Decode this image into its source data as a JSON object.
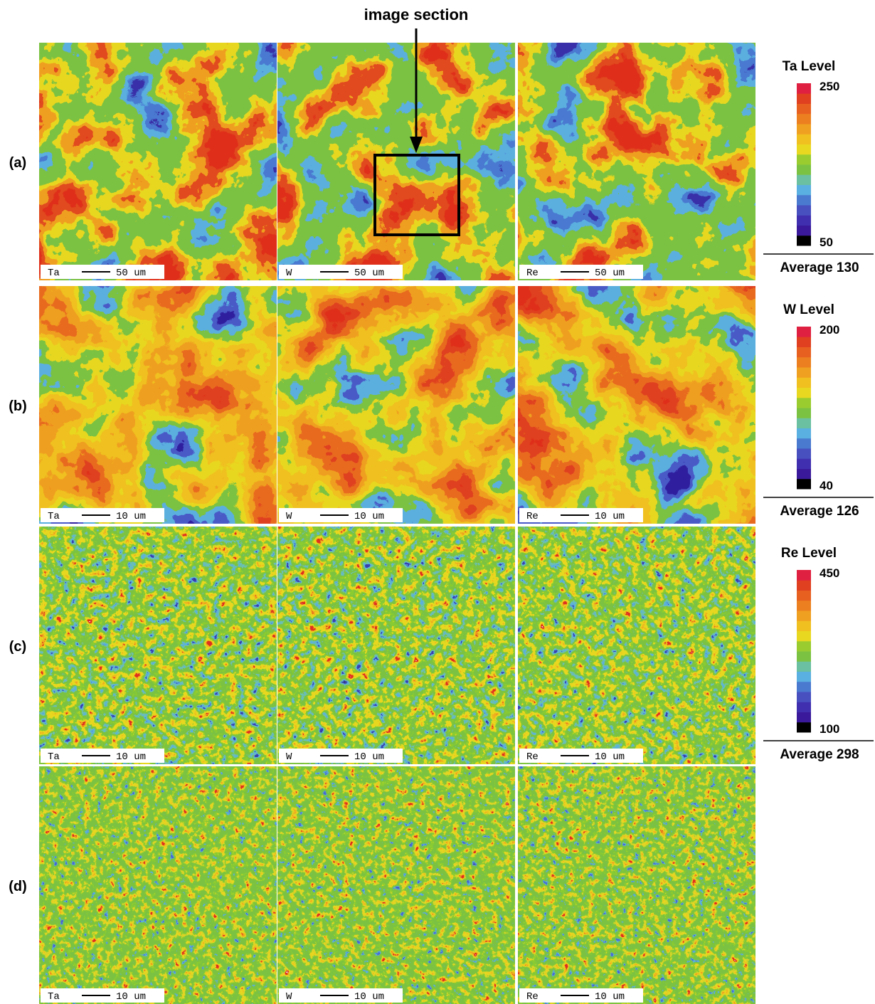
{
  "figure": {
    "annotation": "image section",
    "rows": [
      {
        "label": "(a)",
        "panels": [
          {
            "element": "Ta",
            "scale": "50 um"
          },
          {
            "element": "W",
            "scale": "50 um"
          },
          {
            "element": "Re",
            "scale": "50 um"
          }
        ]
      },
      {
        "label": "(b)",
        "panels": [
          {
            "element": "Ta",
            "scale": "10 um"
          },
          {
            "element": "W",
            "scale": "10 um"
          },
          {
            "element": "Re",
            "scale": "10 um"
          }
        ]
      },
      {
        "label": "(c)",
        "panels": [
          {
            "element": "Ta",
            "scale": "10 um"
          },
          {
            "element": "W",
            "scale": "10 um"
          },
          {
            "element": "Re",
            "scale": "10 um"
          }
        ]
      },
      {
        "label": "(d)",
        "panels": [
          {
            "element": "Ta",
            "scale": "10 um"
          },
          {
            "element": "W",
            "scale": "10 um"
          },
          {
            "element": "Re",
            "scale": "10 um"
          }
        ]
      }
    ],
    "legends": [
      {
        "title": "Ta Level",
        "max": 250,
        "min": 50,
        "average": "Average 130"
      },
      {
        "title": "W Level",
        "max": 200,
        "min": 40,
        "average": "Average 126"
      },
      {
        "title": "Re Level",
        "max": 450,
        "min": 100,
        "average": "Average 298"
      }
    ]
  }
}
